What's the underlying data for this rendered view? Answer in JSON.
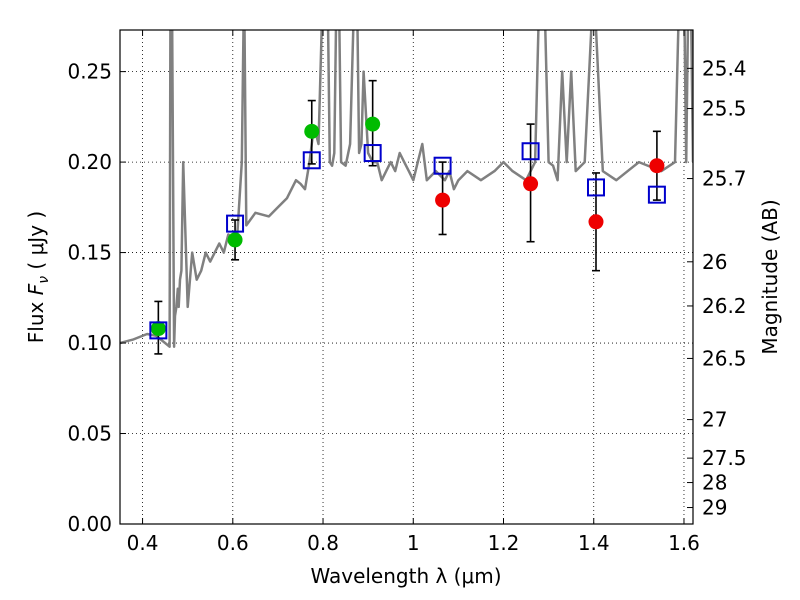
{
  "chart_data": {
    "type": "scatter",
    "xlabel": "Wavelength  λ (μm)",
    "ylabel": "Flux  F_ν  ( μJy )",
    "ylabel_parts": {
      "pre": "Flux  ",
      "sym": "F",
      "sub": "ν",
      "post": "  ( μJy )"
    },
    "ylabel_right": "Magnitude (AB)",
    "xlim": [
      0.35,
      1.62
    ],
    "ylim": [
      0.0,
      0.273
    ],
    "grid": true,
    "x_ticks": [
      0.4,
      0.6,
      0.8,
      1.0,
      1.2,
      1.4,
      1.6
    ],
    "x_tick_labels": [
      "0.4",
      "0.6",
      "0.8",
      "1",
      "1.2",
      "1.4",
      "1.6"
    ],
    "y_ticks": [
      0.0,
      0.05,
      0.1,
      0.15,
      0.2,
      0.25
    ],
    "y_tick_labels": [
      "0.00",
      "0.05",
      "0.10",
      "0.15",
      "0.20",
      "0.25"
    ],
    "right_axis_ticks": [
      {
        "label": "25.4",
        "flux": 0.2518
      },
      {
        "label": "25.5",
        "flux": 0.2296
      },
      {
        "label": "25.7",
        "flux": 0.1909
      },
      {
        "label": "26",
        "flux": 0.1449
      },
      {
        "label": "26.2",
        "flux": 0.1205
      },
      {
        "label": "26.5",
        "flux": 0.0915
      },
      {
        "label": "27",
        "flux": 0.0577
      },
      {
        "label": "27.5",
        "flux": 0.0364
      },
      {
        "label": "28",
        "flux": 0.0229
      },
      {
        "label": "29",
        "flux": 0.0091
      }
    ],
    "series": [
      {
        "kind": "line",
        "color": "#808080",
        "x": [
          0.35,
          0.38,
          0.41,
          0.43,
          0.45,
          0.46,
          0.462,
          0.465,
          0.47,
          0.472,
          0.475,
          0.478,
          0.48,
          0.483,
          0.486,
          0.49,
          0.5,
          0.51,
          0.52,
          0.53,
          0.54,
          0.55,
          0.56,
          0.57,
          0.58,
          0.59,
          0.6,
          0.61,
          0.62,
          0.625,
          0.63,
          0.65,
          0.68,
          0.7,
          0.72,
          0.74,
          0.75,
          0.76,
          0.77,
          0.78,
          0.79,
          0.8,
          0.81,
          0.815,
          0.82,
          0.825,
          0.83,
          0.835,
          0.84,
          0.85,
          0.86,
          0.87,
          0.875,
          0.88,
          0.885,
          0.89,
          0.9,
          0.91,
          0.92,
          0.93,
          0.94,
          0.95,
          0.96,
          0.97,
          0.98,
          0.99,
          1.0,
          1.01,
          1.02,
          1.03,
          1.05,
          1.07,
          1.08,
          1.09,
          1.1,
          1.12,
          1.15,
          1.18,
          1.2,
          1.22,
          1.25,
          1.27,
          1.28,
          1.29,
          1.3,
          1.31,
          1.32,
          1.33,
          1.34,
          1.35,
          1.36,
          1.38,
          1.4,
          1.42,
          1.45,
          1.5,
          1.55,
          1.58,
          1.59,
          1.6,
          1.605,
          1.61,
          1.615,
          1.62
        ],
        "y": [
          0.1,
          0.102,
          0.105,
          0.104,
          0.1,
          0.098,
          0.3,
          0.3,
          0.098,
          0.115,
          0.12,
          0.13,
          0.12,
          0.135,
          0.14,
          0.2,
          0.12,
          0.15,
          0.135,
          0.14,
          0.15,
          0.145,
          0.15,
          0.155,
          0.15,
          0.16,
          0.158,
          0.16,
          0.2,
          0.3,
          0.165,
          0.172,
          0.17,
          0.175,
          0.18,
          0.19,
          0.188,
          0.185,
          0.2,
          0.22,
          0.21,
          0.3,
          0.3,
          0.2,
          0.198,
          0.205,
          0.3,
          0.3,
          0.2,
          0.198,
          0.21,
          0.3,
          0.3,
          0.205,
          0.21,
          0.25,
          0.205,
          0.2,
          0.2,
          0.19,
          0.195,
          0.2,
          0.195,
          0.205,
          0.2,
          0.195,
          0.19,
          0.2,
          0.21,
          0.19,
          0.195,
          0.19,
          0.195,
          0.185,
          0.19,
          0.195,
          0.19,
          0.195,
          0.2,
          0.195,
          0.19,
          0.2,
          0.3,
          0.3,
          0.2,
          0.198,
          0.19,
          0.25,
          0.2,
          0.25,
          0.195,
          0.2,
          0.3,
          0.195,
          0.19,
          0.2,
          0.195,
          0.2,
          0.3,
          0.3,
          0.2,
          0.3,
          0.3,
          0.2
        ]
      },
      {
        "kind": "points",
        "marker": "circle",
        "color": "#00bb00",
        "points": [
          {
            "x": 0.435,
            "y": 0.108,
            "err_lo": 0.094,
            "err_hi": 0.123
          },
          {
            "x": 0.605,
            "y": 0.157,
            "err_lo": 0.146,
            "err_hi": 0.168
          },
          {
            "x": 0.775,
            "y": 0.217,
            "err_lo": 0.199,
            "err_hi": 0.234
          },
          {
            "x": 0.91,
            "y": 0.221,
            "err_lo": 0.198,
            "err_hi": 0.245
          }
        ]
      },
      {
        "kind": "points",
        "marker": "circle",
        "color": "#ee0000",
        "points": [
          {
            "x": 1.065,
            "y": 0.179,
            "err_lo": 0.16,
            "err_hi": 0.2
          },
          {
            "x": 1.26,
            "y": 0.188,
            "err_lo": 0.156,
            "err_hi": 0.221
          },
          {
            "x": 1.405,
            "y": 0.167,
            "err_lo": 0.14,
            "err_hi": 0.194
          },
          {
            "x": 1.54,
            "y": 0.198,
            "err_lo": 0.179,
            "err_hi": 0.217
          }
        ]
      },
      {
        "kind": "points",
        "marker": "square-open",
        "color": "#0000cc",
        "points": [
          {
            "x": 0.435,
            "y": 0.107
          },
          {
            "x": 0.605,
            "y": 0.166
          },
          {
            "x": 0.775,
            "y": 0.201
          },
          {
            "x": 0.91,
            "y": 0.205
          },
          {
            "x": 1.065,
            "y": 0.198
          },
          {
            "x": 1.26,
            "y": 0.206
          },
          {
            "x": 1.405,
            "y": 0.186
          },
          {
            "x": 1.54,
            "y": 0.182
          }
        ]
      }
    ]
  }
}
